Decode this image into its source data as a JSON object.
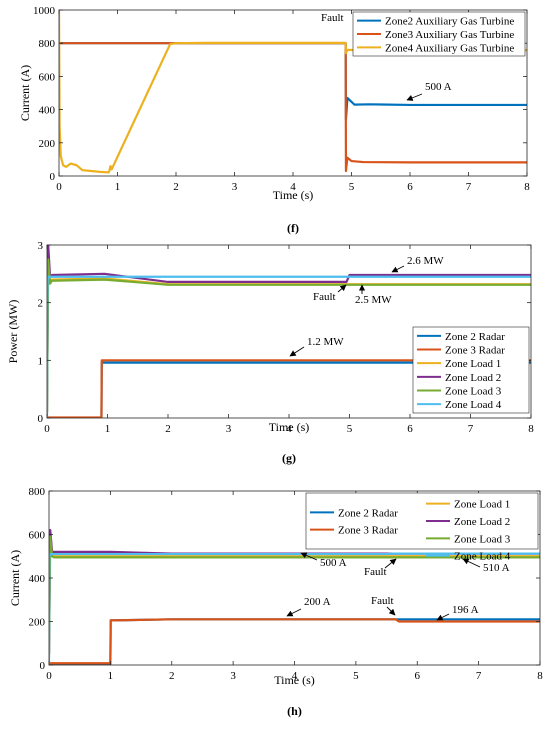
{
  "chart_data": [
    {
      "id": "f",
      "type": "line",
      "panel_label": "(f)",
      "xlabel": "Time (s)",
      "ylabel": "Current (A)",
      "xlim": [
        0,
        8
      ],
      "ylim": [
        0,
        1000
      ],
      "xticks": [
        0,
        1,
        2,
        3,
        4,
        5,
        6,
        7,
        8
      ],
      "yticks": [
        0,
        200,
        400,
        600,
        800,
        1000
      ],
      "grid": false,
      "legend_position": "top-right",
      "legend_columns": 1,
      "series": [
        {
          "name": "Zone2 Auxiliary Gas Turbine",
          "color": "#0072bd",
          "x": [
            0,
            4.9,
            4.905,
            4.93,
            5.05,
            5.3,
            6,
            8
          ],
          "y": [
            800,
            800,
            340,
            470,
            430,
            432,
            428,
            428
          ]
        },
        {
          "name": "Zone3 Auxiliary Gas Turbine",
          "color": "#d95319",
          "x": [
            0,
            4.9,
            4.905,
            4.93,
            5.0,
            5.2,
            6,
            8
          ],
          "y": [
            800,
            800,
            30,
            110,
            90,
            84,
            82,
            82
          ]
        },
        {
          "name": "Zone4 Auxiliary Gas Turbine",
          "color": "#edb120",
          "x": [
            0,
            0.01,
            0.03,
            0.07,
            0.12,
            0.2,
            0.3,
            0.4,
            0.55,
            0.7,
            0.85,
            0.86,
            0.88,
            0.9,
            1.9,
            2.0,
            2.5,
            4.9,
            4.905,
            4.93,
            5.2,
            8
          ],
          "y": [
            1000,
            300,
            120,
            65,
            55,
            75,
            65,
            35,
            30,
            25,
            22,
            30,
            60,
            40,
            795,
            800,
            802,
            802,
            740,
            760,
            758,
            758
          ]
        }
      ],
      "annotations": [
        {
          "text": "Fault",
          "x": 4.85,
          "y": 820
        },
        {
          "text": "500 A",
          "x": 5.85,
          "y": 435
        }
      ]
    },
    {
      "id": "g",
      "type": "line",
      "panel_label": "(g)",
      "xlabel": "Time (s)",
      "ylabel": "Power (MW)",
      "xlim": [
        0,
        8
      ],
      "ylim": [
        0,
        3
      ],
      "xticks": [
        0,
        1,
        2,
        3,
        4,
        5,
        6,
        7,
        8
      ],
      "yticks": [
        0,
        1,
        2,
        3
      ],
      "grid": false,
      "legend_position": "right",
      "legend_columns": 1,
      "series": [
        {
          "name": "Zone 2 Radar",
          "color": "#0072bd",
          "x": [
            0,
            0.9,
            0.905,
            8
          ],
          "y": [
            0,
            0,
            0.96,
            0.96
          ]
        },
        {
          "name": "Zone 3 Radar",
          "color": "#d95319",
          "x": [
            0,
            0.9,
            0.905,
            8
          ],
          "y": [
            0.01,
            0.01,
            1.0,
            1.0
          ]
        },
        {
          "name": "Zone Load 1",
          "color": "#edb120",
          "x": [
            0,
            0.02,
            0.05,
            0.08,
            0.95,
            2.0,
            5.0,
            8
          ],
          "y": [
            0.1,
            2.8,
            2.35,
            2.4,
            2.42,
            2.32,
            2.32,
            2.32
          ]
        },
        {
          "name": "Zone Load 2",
          "color": "#7e2f8e",
          "x": [
            0,
            0.02,
            0.05,
            0.08,
            0.95,
            2.0,
            4.95,
            5.0,
            8
          ],
          "y": [
            0.1,
            3.0,
            2.45,
            2.48,
            2.5,
            2.36,
            2.36,
            2.48,
            2.48
          ]
        },
        {
          "name": "Zone Load 3",
          "color": "#77ac30",
          "x": [
            0,
            0.02,
            0.05,
            0.08,
            0.95,
            2.0,
            5.0,
            8
          ],
          "y": [
            0.1,
            2.75,
            2.33,
            2.38,
            2.4,
            2.31,
            2.31,
            2.31
          ]
        },
        {
          "name": "Zone Load 4",
          "color": "#4dbeee",
          "x": [
            0,
            0.005,
            0.01,
            0.03,
            0.06,
            8
          ],
          "y": [
            0,
            2.0,
            2.4,
            2.45,
            2.45,
            2.45
          ]
        }
      ],
      "annotations": [
        {
          "text": "2.6 MW",
          "x": 6.2,
          "y": 2.7
        },
        {
          "text": "Fault",
          "x": 4.4,
          "y": 2.15
        },
        {
          "text": "2.5 MW",
          "x": 5.55,
          "y": 2.12
        },
        {
          "text": "1.2 MW",
          "x": 4.55,
          "y": 1.35
        }
      ]
    },
    {
      "id": "h",
      "type": "line",
      "panel_label": "(h)",
      "xlabel": "Time (s)",
      "ylabel": "Current (A)",
      "xlim": [
        0,
        8
      ],
      "ylim": [
        0,
        800
      ],
      "xticks": [
        0,
        1,
        2,
        3,
        4,
        5,
        6,
        7,
        8
      ],
      "yticks": [
        0,
        200,
        400,
        600,
        800
      ],
      "grid": false,
      "legend_position": "top-right",
      "legend_columns": 2,
      "series": [
        {
          "name": "Zone 2 Radar",
          "color": "#0072bd",
          "x": [
            0,
            1.0,
            1.005,
            2.0,
            5.6,
            8
          ],
          "y": [
            5,
            5,
            205,
            210,
            210,
            210
          ]
        },
        {
          "name": "Zone 3 Radar",
          "color": "#d95319",
          "x": [
            0,
            1.0,
            1.005,
            2.0,
            5.65,
            5.7,
            8
          ],
          "y": [
            8,
            8,
            205,
            210,
            210,
            200,
            200
          ]
        },
        {
          "name": "Zone Load 1",
          "color": "#edb120",
          "x": [
            0,
            0.02,
            0.05,
            0.08,
            8
          ],
          "y": [
            50,
            600,
            505,
            500,
            500
          ]
        },
        {
          "name": "Zone Load 2",
          "color": "#7e2f8e",
          "x": [
            0,
            0.02,
            0.05,
            0.08,
            1.0,
            2.0,
            8
          ],
          "y": [
            50,
            620,
            520,
            520,
            520,
            512,
            512
          ]
        },
        {
          "name": "Zone Load 3",
          "color": "#77ac30",
          "x": [
            0,
            0.02,
            0.05,
            0.08,
            8
          ],
          "y": [
            50,
            590,
            500,
            495,
            495
          ]
        },
        {
          "name": "Zone Load 4",
          "color": "#4dbeee",
          "x": [
            0,
            0.005,
            0.02,
            0.06,
            5.5,
            5.6,
            8
          ],
          "y": [
            0,
            500,
            510,
            510,
            510,
            512,
            512
          ]
        }
      ],
      "annotations": [
        {
          "text": "500 A",
          "x": 4.3,
          "y": 460
        },
        {
          "text": "Fault",
          "x": 5.45,
          "y": 425
        },
        {
          "text": "510 A",
          "x": 6.7,
          "y": 440
        },
        {
          "text": "200 A",
          "x": 4.1,
          "y": 240
        },
        {
          "text": "Fault",
          "x": 5.25,
          "y": 265
        },
        {
          "text": "196 A",
          "x": 6.5,
          "y": 248
        }
      ]
    }
  ]
}
